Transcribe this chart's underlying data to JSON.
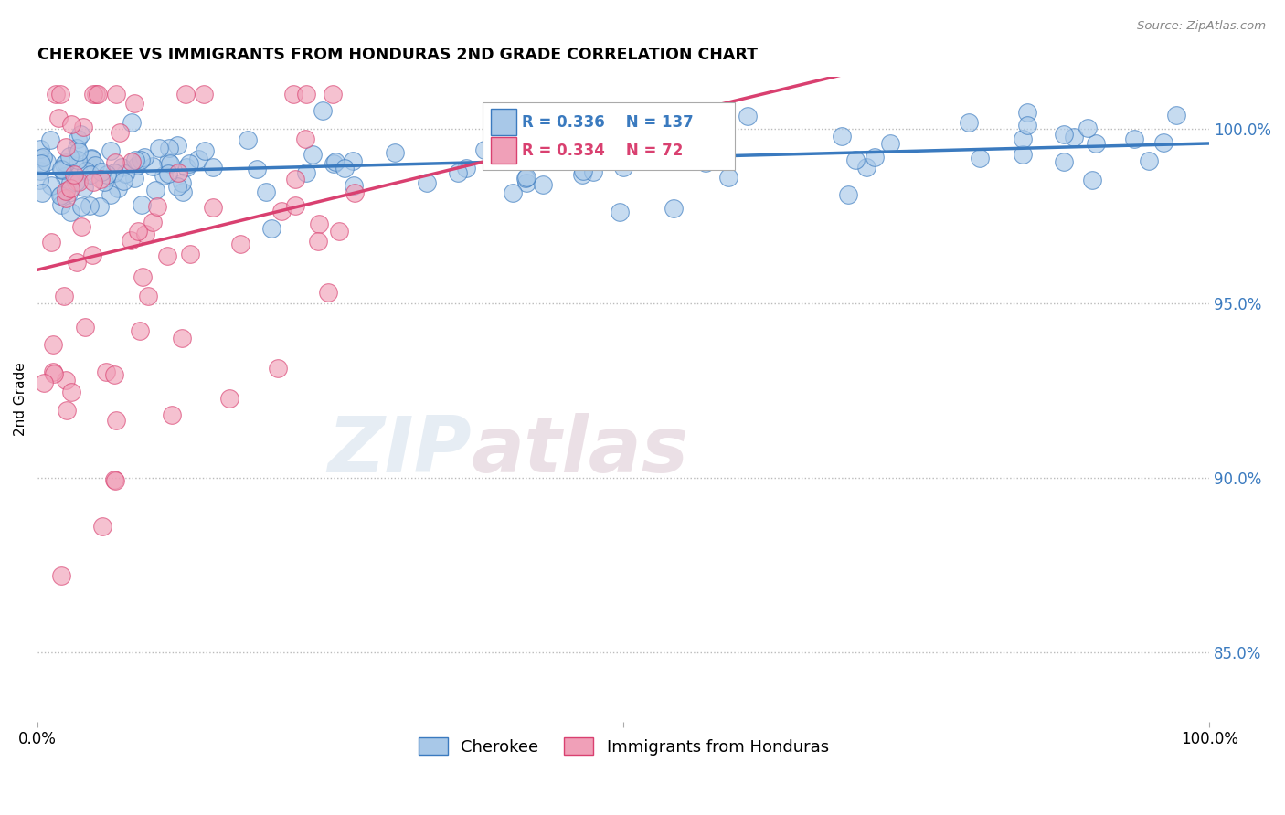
{
  "title": "CHEROKEE VS IMMIGRANTS FROM HONDURAS 2ND GRADE CORRELATION CHART",
  "source": "Source: ZipAtlas.com",
  "ylabel": "2nd Grade",
  "right_ytick_vals": [
    85.0,
    90.0,
    95.0,
    100.0
  ],
  "legend_label_blue": "Cherokee",
  "legend_label_pink": "Immigrants from Honduras",
  "blue_R": 0.336,
  "blue_N": 137,
  "pink_R": 0.334,
  "pink_N": 72,
  "blue_color": "#a8c8e8",
  "blue_line_color": "#3a7abf",
  "pink_color": "#f0a0b8",
  "pink_line_color": "#d94070",
  "watermark": "ZIPatlas",
  "background_color": "#ffffff",
  "grid_color": "#bbbbbb",
  "ymin": 83.0,
  "ymax": 101.5
}
